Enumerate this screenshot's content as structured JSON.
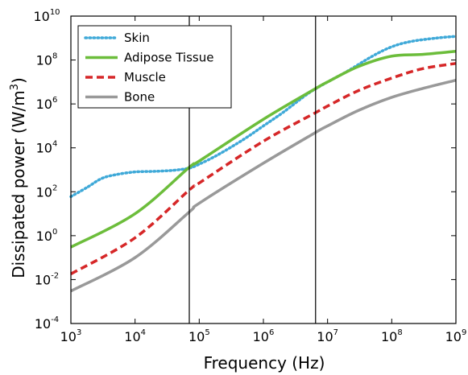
{
  "chart_data": {
    "type": "line",
    "xlabel": "Frequency (Hz)",
    "ylabel": "Dissipated power (W/m",
    "ylabel_sup": "3",
    "ylabel_end": ")",
    "x_scale": "log",
    "y_scale": "log",
    "xlim": [
      1000,
      1000000000
    ],
    "ylim": [
      0.0001,
      10000000000
    ],
    "x_ticks": [
      {
        "value": 1000,
        "base": "10",
        "exp": "3"
      },
      {
        "value": 10000,
        "base": "10",
        "exp": "4"
      },
      {
        "value": 100000,
        "base": "10",
        "exp": "5"
      },
      {
        "value": 1000000,
        "base": "10",
        "exp": "6"
      },
      {
        "value": 10000000,
        "base": "10",
        "exp": "7"
      },
      {
        "value": 100000000,
        "base": "10",
        "exp": "8"
      },
      {
        "value": 1000000000,
        "base": "10",
        "exp": "9"
      }
    ],
    "y_ticks": [
      {
        "value": 0.0001,
        "base": "10",
        "exp": "-4"
      },
      {
        "value": 0.01,
        "base": "10",
        "exp": "-2"
      },
      {
        "value": 1,
        "base": "10",
        "exp": "0"
      },
      {
        "value": 100,
        "base": "10",
        "exp": "2"
      },
      {
        "value": 10000,
        "base": "10",
        "exp": "4"
      },
      {
        "value": 1000000,
        "base": "10",
        "exp": "6"
      },
      {
        "value": 100000000,
        "base": "10",
        "exp": "8"
      },
      {
        "value": 10000000000,
        "base": "10",
        "exp": "10"
      }
    ],
    "vertical_lines": [
      70000,
      6500000
    ],
    "grid": false,
    "legend_position": "top-left",
    "series": [
      {
        "name": "Skin",
        "color": "#3fa9d8",
        "dash": "dotted",
        "x": [
          1000,
          1800,
          3000,
          5000,
          10000,
          20000,
          40000,
          70000,
          100000,
          200000,
          500000,
          1000000,
          2000000,
          5000000,
          10000000,
          20000000,
          50000000,
          100000000,
          200000000,
          500000000,
          1000000000
        ],
        "y": [
          60,
          160,
          400,
          600,
          800,
          850,
          950,
          1200,
          1800,
          5000,
          25000,
          100000,
          400000,
          3000000,
          10000000,
          30000000,
          150000000,
          400000000,
          700000000,
          1000000000,
          1200000000
        ]
      },
      {
        "name": "Adipose Tissue",
        "color": "#6cbd3b",
        "dash": "solid",
        "x": [
          1000,
          10000,
          70000,
          100000,
          1000000,
          6500000,
          10000000,
          30000000,
          100000000,
          300000000,
          1000000000
        ],
        "y": [
          0.3,
          10,
          1300,
          2500,
          200000,
          5000000,
          10000000,
          50000000,
          150000000,
          180000000,
          250000000
        ]
      },
      {
        "name": "Muscle",
        "color": "#d62728",
        "dash": "dashed",
        "x": [
          1000,
          10000,
          70000,
          100000,
          1000000,
          6500000,
          10000000,
          30000000,
          100000000,
          300000000,
          1000000000
        ],
        "y": [
          0.018,
          0.8,
          120,
          250,
          20000,
          400000,
          800000,
          4000000,
          15000000,
          40000000,
          70000000
        ]
      },
      {
        "name": "Bone",
        "color": "#999999",
        "dash": "solid",
        "x": [
          1000,
          10000,
          70000,
          100000,
          1000000,
          6500000,
          10000000,
          30000000,
          100000000,
          300000000,
          1000000000
        ],
        "y": [
          0.003,
          0.1,
          12,
          30,
          2000,
          50000,
          100000,
          500000,
          2000000,
          5000000,
          12000000
        ]
      }
    ]
  }
}
